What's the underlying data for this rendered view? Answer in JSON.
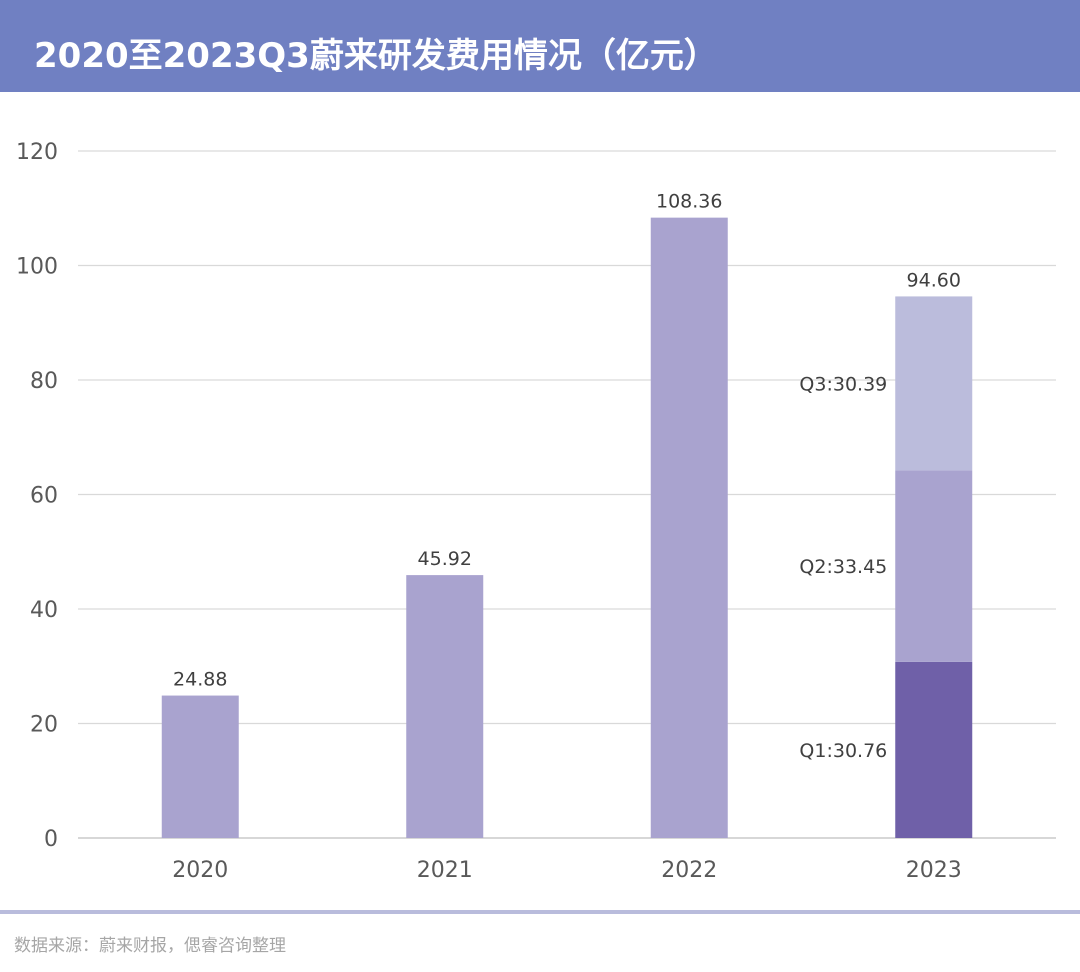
{
  "header": {
    "title": "2020至2023Q3蔚来研发费用情况（亿元）"
  },
  "footer": {
    "source": "数据来源：蔚来财报，偲睿咨询整理"
  },
  "colors": {
    "bar": "#a9a3cf",
    "q1": "#6f60a8",
    "q2": "#a9a3cf",
    "q3": "#bbbcdc",
    "grid": "#d9d9d9"
  },
  "chart_data": {
    "type": "bar",
    "title": "2020至2023Q3蔚来研发费用情况（亿元）",
    "categories": [
      "2020",
      "2021",
      "2022",
      "2023"
    ],
    "ylim": [
      0,
      120
    ],
    "yticks": [
      0,
      20,
      40,
      60,
      80,
      100,
      120
    ],
    "grid": true,
    "legend": "none",
    "values": [
      24.88,
      45.92,
      108.36,
      94.6
    ],
    "value_labels": [
      "24.88",
      "45.92",
      "108.36",
      "94.60"
    ],
    "stacked_category": "2023",
    "stack_segments": [
      {
        "value": 30.76,
        "label": "Q1:30.76"
      },
      {
        "value": 33.45,
        "label": "Q2:33.45"
      },
      {
        "value": 30.39,
        "label": "Q3:30.39"
      }
    ]
  }
}
